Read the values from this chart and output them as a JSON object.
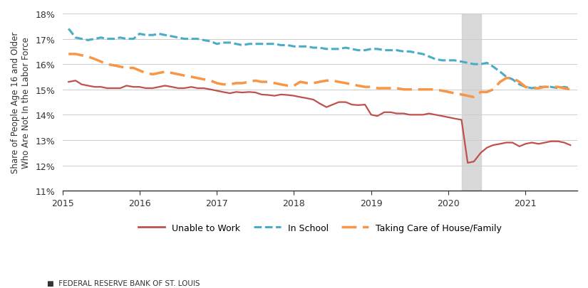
{
  "ylabel": "Share of People Age 16 and Older\nWho Are Not In the Labor Force",
  "footer": "FEDERAL RESERVE BANK OF ST. LOUIS",
  "ylim": [
    0.11,
    0.18
  ],
  "yticks": [
    0.11,
    0.12,
    0.13,
    0.14,
    0.15,
    0.16,
    0.17,
    0.18
  ],
  "shaded_region": [
    2020.17,
    2020.42
  ],
  "colors": {
    "unable": "#c0504d",
    "school": "#4bacc6",
    "house": "#f79646"
  },
  "unable_x": [
    2015.08,
    2015.17,
    2015.25,
    2015.33,
    2015.42,
    2015.5,
    2015.58,
    2015.67,
    2015.75,
    2015.83,
    2015.92,
    2016.0,
    2016.08,
    2016.17,
    2016.25,
    2016.33,
    2016.42,
    2016.5,
    2016.58,
    2016.67,
    2016.75,
    2016.83,
    2016.92,
    2017.0,
    2017.08,
    2017.17,
    2017.25,
    2017.33,
    2017.42,
    2017.5,
    2017.58,
    2017.67,
    2017.75,
    2017.83,
    2017.92,
    2018.0,
    2018.08,
    2018.17,
    2018.25,
    2018.33,
    2018.42,
    2018.5,
    2018.58,
    2018.67,
    2018.75,
    2018.83,
    2018.92,
    2019.0,
    2019.08,
    2019.17,
    2019.25,
    2019.33,
    2019.42,
    2019.5,
    2019.58,
    2019.67,
    2019.75,
    2019.83,
    2019.92,
    2020.0,
    2020.08,
    2020.17,
    2020.25,
    2020.33,
    2020.42,
    2020.5,
    2020.58,
    2020.67,
    2020.75,
    2020.83,
    2020.92,
    2021.0,
    2021.08,
    2021.17,
    2021.25,
    2021.33,
    2021.42,
    2021.5,
    2021.58
  ],
  "unable_y": [
    0.153,
    0.1535,
    0.152,
    0.1515,
    0.151,
    0.151,
    0.1505,
    0.1505,
    0.1505,
    0.1515,
    0.151,
    0.151,
    0.1505,
    0.1505,
    0.151,
    0.1515,
    0.151,
    0.1505,
    0.1505,
    0.151,
    0.1505,
    0.1505,
    0.15,
    0.1495,
    0.149,
    0.1485,
    0.149,
    0.1488,
    0.149,
    0.1488,
    0.148,
    0.1478,
    0.1475,
    0.148,
    0.1478,
    0.1475,
    0.147,
    0.1465,
    0.146,
    0.1445,
    0.143,
    0.144,
    0.145,
    0.145,
    0.144,
    0.1438,
    0.144,
    0.14,
    0.1395,
    0.141,
    0.141,
    0.1405,
    0.1405,
    0.14,
    0.14,
    0.14,
    0.1405,
    0.14,
    0.1395,
    0.139,
    0.1385,
    0.138,
    0.121,
    0.1215,
    0.125,
    0.127,
    0.128,
    0.1285,
    0.129,
    0.129,
    0.1275,
    0.1285,
    0.129,
    0.1285,
    0.129,
    0.1295,
    0.1295,
    0.129,
    0.128
  ],
  "school_x": [
    2015.08,
    2015.17,
    2015.25,
    2015.33,
    2015.42,
    2015.5,
    2015.58,
    2015.67,
    2015.75,
    2015.83,
    2015.92,
    2016.0,
    2016.08,
    2016.17,
    2016.25,
    2016.33,
    2016.42,
    2016.5,
    2016.58,
    2016.67,
    2016.75,
    2016.83,
    2016.92,
    2017.0,
    2017.08,
    2017.17,
    2017.25,
    2017.33,
    2017.42,
    2017.5,
    2017.58,
    2017.67,
    2017.75,
    2017.83,
    2017.92,
    2018.0,
    2018.08,
    2018.17,
    2018.25,
    2018.33,
    2018.42,
    2018.5,
    2018.58,
    2018.67,
    2018.75,
    2018.83,
    2018.92,
    2019.0,
    2019.08,
    2019.17,
    2019.25,
    2019.33,
    2019.42,
    2019.5,
    2019.58,
    2019.67,
    2019.75,
    2019.83,
    2019.92,
    2020.0,
    2020.08,
    2020.17,
    2020.25,
    2020.33,
    2020.42,
    2020.5,
    2020.58,
    2020.67,
    2020.75,
    2020.83,
    2020.92,
    2021.0,
    2021.08,
    2021.17,
    2021.25,
    2021.33,
    2021.42,
    2021.5,
    2021.58
  ],
  "school_y": [
    0.174,
    0.1705,
    0.17,
    0.1695,
    0.17,
    0.1705,
    0.17,
    0.17,
    0.1705,
    0.17,
    0.17,
    0.172,
    0.1715,
    0.1715,
    0.172,
    0.1715,
    0.171,
    0.1705,
    0.17,
    0.17,
    0.17,
    0.1695,
    0.169,
    0.168,
    0.1685,
    0.1685,
    0.168,
    0.1675,
    0.168,
    0.168,
    0.168,
    0.168,
    0.168,
    0.1675,
    0.1675,
    0.167,
    0.167,
    0.167,
    0.1665,
    0.1665,
    0.166,
    0.166,
    0.166,
    0.1665,
    0.166,
    0.1655,
    0.1655,
    0.166,
    0.166,
    0.1655,
    0.1655,
    0.1655,
    0.165,
    0.165,
    0.1645,
    0.164,
    0.163,
    0.162,
    0.1615,
    0.1615,
    0.1615,
    0.161,
    0.1605,
    0.16,
    0.16,
    0.1605,
    0.159,
    0.157,
    0.155,
    0.154,
    0.152,
    0.151,
    0.1505,
    0.151,
    0.151,
    0.151,
    0.1505,
    0.151,
    0.1505
  ],
  "house_x": [
    2015.08,
    2015.17,
    2015.25,
    2015.33,
    2015.42,
    2015.5,
    2015.58,
    2015.67,
    2015.75,
    2015.83,
    2015.92,
    2016.0,
    2016.08,
    2016.17,
    2016.25,
    2016.33,
    2016.42,
    2016.5,
    2016.58,
    2016.67,
    2016.75,
    2016.83,
    2016.92,
    2017.0,
    2017.08,
    2017.17,
    2017.25,
    2017.33,
    2017.42,
    2017.5,
    2017.58,
    2017.67,
    2017.75,
    2017.83,
    2017.92,
    2018.0,
    2018.08,
    2018.17,
    2018.25,
    2018.33,
    2018.42,
    2018.5,
    2018.58,
    2018.67,
    2018.75,
    2018.83,
    2018.92,
    2019.0,
    2019.08,
    2019.17,
    2019.25,
    2019.33,
    2019.42,
    2019.5,
    2019.58,
    2019.67,
    2019.75,
    2019.83,
    2019.92,
    2020.0,
    2020.08,
    2020.17,
    2020.25,
    2020.33,
    2020.42,
    2020.5,
    2020.58,
    2020.67,
    2020.75,
    2020.83,
    2020.92,
    2021.0,
    2021.08,
    2021.17,
    2021.25,
    2021.33,
    2021.42,
    2021.5,
    2021.58
  ],
  "house_y": [
    0.164,
    0.164,
    0.1635,
    0.163,
    0.162,
    0.161,
    0.16,
    0.1595,
    0.159,
    0.1585,
    0.1585,
    0.1575,
    0.1565,
    0.156,
    0.1565,
    0.157,
    0.1565,
    0.156,
    0.1555,
    0.155,
    0.1545,
    0.154,
    0.1535,
    0.1525,
    0.152,
    0.152,
    0.1525,
    0.1525,
    0.153,
    0.1535,
    0.153,
    0.153,
    0.1525,
    0.152,
    0.1515,
    0.1515,
    0.153,
    0.1525,
    0.1525,
    0.153,
    0.1535,
    0.1535,
    0.153,
    0.1525,
    0.152,
    0.1515,
    0.151,
    0.151,
    0.1505,
    0.1505,
    0.1505,
    0.1505,
    0.15,
    0.15,
    0.15,
    0.15,
    0.15,
    0.15,
    0.1495,
    0.149,
    0.1485,
    0.148,
    0.1475,
    0.147,
    0.149,
    0.149,
    0.15,
    0.153,
    0.1545,
    0.1545,
    0.153,
    0.151,
    0.1505,
    0.1505,
    0.151,
    0.151,
    0.151,
    0.1505,
    0.15
  ],
  "xticks": [
    2015,
    2016,
    2017,
    2018,
    2019,
    2020,
    2021
  ],
  "xlim": [
    2015.0,
    2021.67
  ]
}
